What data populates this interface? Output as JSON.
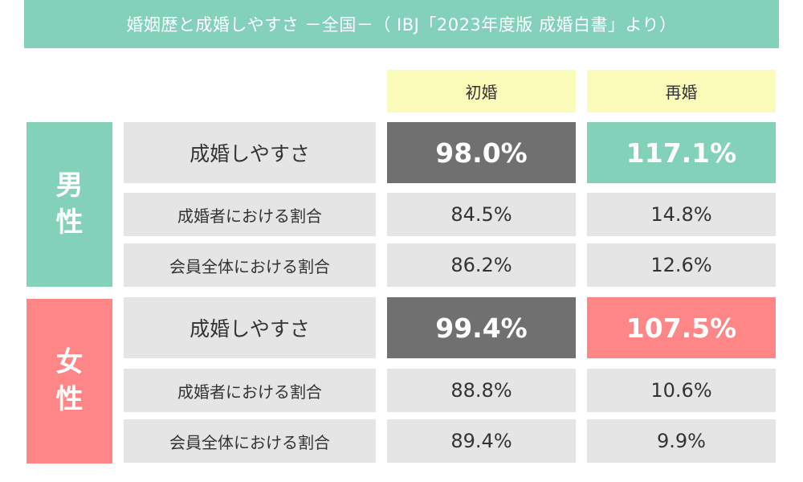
{
  "title": "婚姻歴と成婚しやすさ －全国－（ IBJ「2023年度版 成婚白書」より）",
  "colors": {
    "title_bg": "#82d1b8",
    "male": "#82d1b8",
    "female": "#ff8686",
    "header_bg": "#fafab9",
    "cell_bg": "#e5e5e5",
    "dark": "#707070"
  },
  "chart_data": {
    "type": "table",
    "columns": [
      "初婚",
      "再婚"
    ],
    "groups": [
      {
        "name": "男性",
        "name_chars": [
          "男",
          "性"
        ],
        "rows": [
          {
            "label": "成婚しやすさ",
            "values": [
              "98.0%",
              "117.1%"
            ]
          },
          {
            "label": "成婚者における割合",
            "values": [
              "84.5%",
              "14.8%"
            ]
          },
          {
            "label": "会員全体における割合",
            "values": [
              "86.2%",
              "12.6%"
            ]
          }
        ]
      },
      {
        "name": "女性",
        "name_chars": [
          "女",
          "性"
        ],
        "rows": [
          {
            "label": "成婚しやすさ",
            "values": [
              "99.4%",
              "107.5%"
            ]
          },
          {
            "label": "成婚者における割合",
            "values": [
              "88.8%",
              "10.6%"
            ]
          },
          {
            "label": "会員全体における割合",
            "values": [
              "89.4%",
              "9.9%"
            ]
          }
        ]
      }
    ]
  }
}
